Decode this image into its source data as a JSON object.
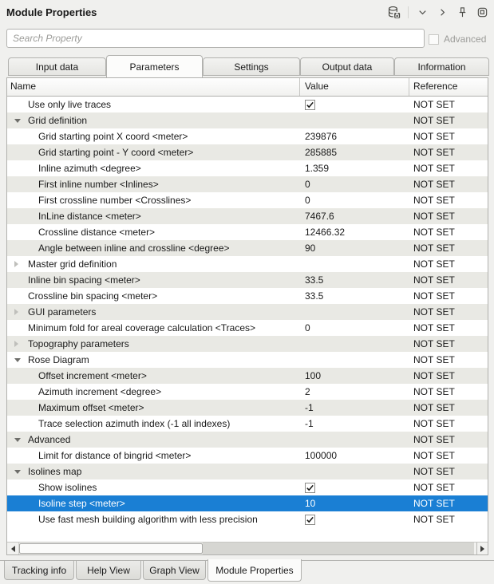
{
  "window": {
    "title": "Module Properties"
  },
  "titlebar": {
    "icons": [
      "database-lock-icon",
      "chevron-down-icon",
      "chevron-right-icon",
      "pin-icon",
      "float-window-icon"
    ]
  },
  "search": {
    "placeholder": "Search Property",
    "advanced_label": "Advanced",
    "advanced_checked": false,
    "advanced_enabled": false
  },
  "tabs": [
    {
      "label": "Input data",
      "selected": false
    },
    {
      "label": "Parameters",
      "selected": true
    },
    {
      "label": "Settings",
      "selected": false
    },
    {
      "label": "Output data",
      "selected": false
    },
    {
      "label": "Information",
      "selected": false
    }
  ],
  "table": {
    "columns": [
      "Name",
      "Value",
      "Reference"
    ],
    "rows": [
      {
        "name": "Use only live traces",
        "type": "checkbox",
        "checked": true,
        "value": "",
        "reference": "NOT SET",
        "level": 1
      },
      {
        "name": "Grid definition",
        "group": true,
        "expanded": true,
        "value": "",
        "reference": "NOT SET",
        "level": 0
      },
      {
        "name": "Grid starting point X coord <meter>",
        "value": "239876",
        "reference": "NOT SET",
        "level": 2
      },
      {
        "name": "Grid starting point - Y coord <meter>",
        "value": "285885",
        "reference": "NOT SET",
        "level": 2
      },
      {
        "name": "Inline azimuth <degree>",
        "value": "1.359",
        "reference": "NOT SET",
        "level": 2
      },
      {
        "name": "First inline number <Inlines>",
        "value": "0",
        "reference": "NOT SET",
        "level": 2
      },
      {
        "name": "First crossline number <Crosslines>",
        "value": "0",
        "reference": "NOT SET",
        "level": 2
      },
      {
        "name": "InLine distance <meter>",
        "value": "7467.6",
        "reference": "NOT SET",
        "level": 2
      },
      {
        "name": "Crossline distance <meter>",
        "value": "12466.32",
        "reference": "NOT SET",
        "level": 2
      },
      {
        "name": "Angle between inline and crossline <degree>",
        "value": "90",
        "reference": "NOT SET",
        "level": 2
      },
      {
        "name": "Master grid definition",
        "group": true,
        "expanded": false,
        "value": "",
        "reference": "NOT SET",
        "level": 0
      },
      {
        "name": "Inline bin spacing <meter>",
        "value": "33.5",
        "reference": "NOT SET",
        "level": 1
      },
      {
        "name": "Crossline bin spacing <meter>",
        "value": "33.5",
        "reference": "NOT SET",
        "level": 1
      },
      {
        "name": "GUI parameters",
        "group": true,
        "expanded": false,
        "value": "",
        "reference": "NOT SET",
        "level": 0
      },
      {
        "name": "Minimum fold for areal coverage calculation <Traces>",
        "value": "0",
        "reference": "NOT SET",
        "level": 1
      },
      {
        "name": "Topography parameters",
        "group": true,
        "expanded": false,
        "value": "",
        "reference": "NOT SET",
        "level": 0
      },
      {
        "name": "Rose Diagram",
        "group": true,
        "expanded": true,
        "value": "",
        "reference": "NOT SET",
        "level": 0
      },
      {
        "name": "Offset increment <meter>",
        "value": "100",
        "reference": "NOT SET",
        "level": 2
      },
      {
        "name": "Azimuth increment <degree>",
        "value": "2",
        "reference": "NOT SET",
        "level": 2
      },
      {
        "name": "Maximum offset <meter>",
        "value": "-1",
        "reference": "NOT SET",
        "level": 2
      },
      {
        "name": "Trace selection azimuth index (-1 all indexes)",
        "value": "-1",
        "reference": "NOT SET",
        "level": 2
      },
      {
        "name": "Advanced",
        "group": true,
        "expanded": true,
        "value": "",
        "reference": "NOT SET",
        "level": 0
      },
      {
        "name": "Limit for distance of bingrid <meter>",
        "value": "100000",
        "reference": "NOT SET",
        "level": 2
      },
      {
        "name": "Isolines map",
        "group": true,
        "expanded": true,
        "value": "",
        "reference": "NOT SET",
        "level": 0
      },
      {
        "name": "Show isolines",
        "type": "checkbox",
        "checked": true,
        "value": "",
        "reference": "NOT SET",
        "level": 2
      },
      {
        "name": "Isoline step <meter>",
        "value": "10",
        "reference": "NOT SET",
        "level": 2,
        "selected": true
      },
      {
        "name": "Use fast mesh building algorithm with less precision",
        "type": "checkbox",
        "checked": true,
        "value": "",
        "reference": "NOT SET",
        "level": 2
      }
    ]
  },
  "bottom_tabs": [
    {
      "label": "Tracking info",
      "selected": false
    },
    {
      "label": "Help View",
      "selected": false
    },
    {
      "label": "Graph View",
      "selected": false
    },
    {
      "label": "Module Properties",
      "selected": true
    }
  ],
  "colors": {
    "selection_blue": "#1a7fd4",
    "row_alternate": "#e9e9e4",
    "panel_background": "#f0f0ee",
    "disabled_text": "#9c9c99"
  }
}
